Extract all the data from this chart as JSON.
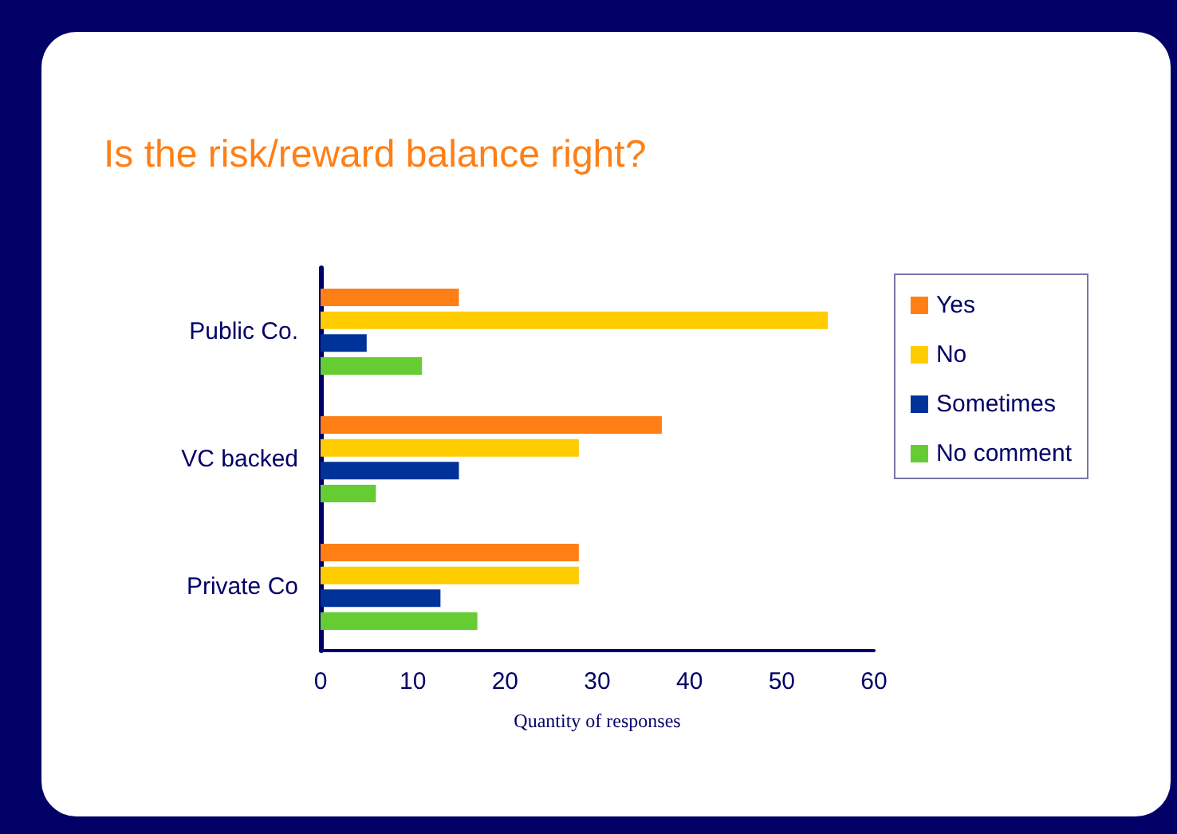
{
  "chart_data": {
    "type": "bar",
    "orientation": "horizontal",
    "title": "Is the risk/reward balance right?",
    "xlabel": "Quantity of responses",
    "categories": [
      "Public Co.",
      "VC backed",
      "Private Co"
    ],
    "series": [
      {
        "name": "Yes",
        "color": "#ff7f16",
        "values": [
          15,
          37,
          28
        ]
      },
      {
        "name": "No",
        "color": "#ffcc00",
        "values": [
          55,
          28,
          28
        ]
      },
      {
        "name": "Sometimes",
        "color": "#003399",
        "values": [
          5,
          15,
          13
        ]
      },
      {
        "name": "No comment",
        "color": "#66cc33",
        "values": [
          11,
          6,
          17
        ]
      }
    ],
    "xlim": [
      0,
      60
    ],
    "xticks": [
      0,
      10,
      20,
      30,
      40,
      50,
      60
    ],
    "grid": false,
    "legend": "right"
  }
}
